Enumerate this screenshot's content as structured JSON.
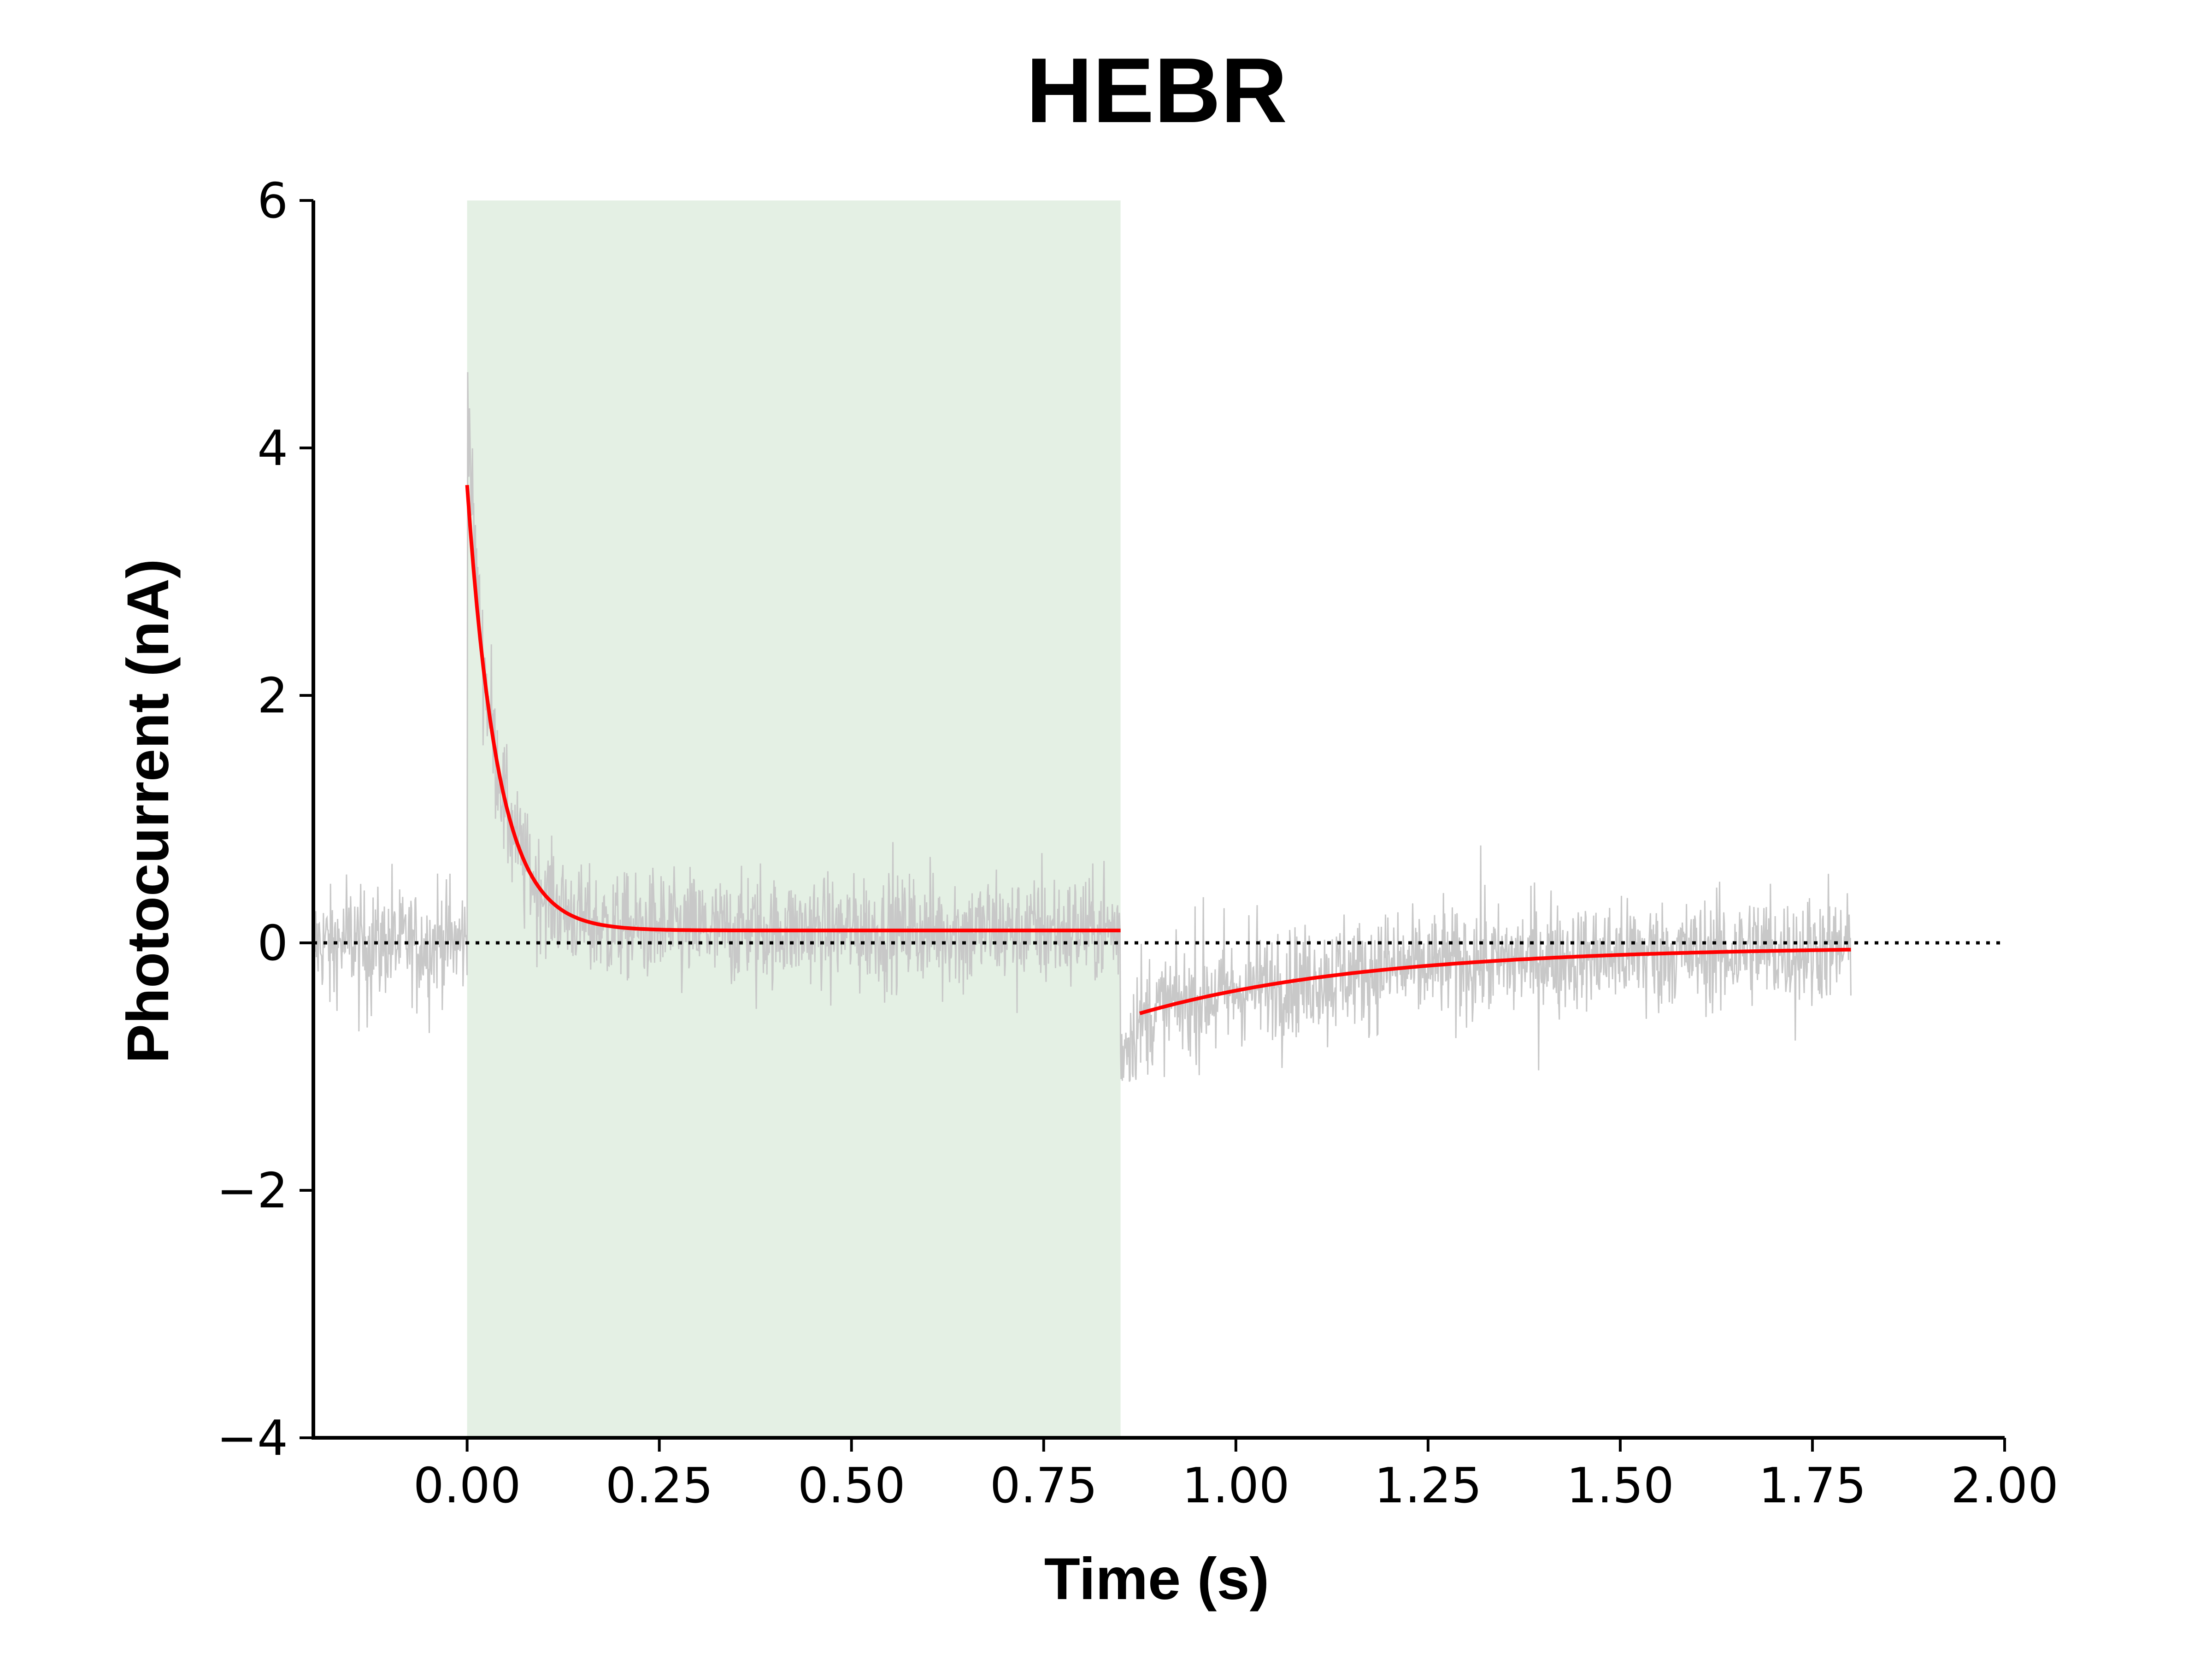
{
  "chart_data": {
    "type": "line",
    "title": "HEBR",
    "xlabel": "Time (s)",
    "ylabel": "Photocurrent (nA)",
    "xlim": [
      -0.2,
      2.0
    ],
    "ylim": [
      -4,
      6
    ],
    "x_ticks": [
      0.0,
      0.25,
      0.5,
      0.75,
      1.0,
      1.25,
      1.5,
      1.75,
      2.0
    ],
    "x_tick_labels": [
      "0.00",
      "0.25",
      "0.50",
      "0.75",
      "1.00",
      "1.25",
      "1.50",
      "1.75",
      "2.00"
    ],
    "y_ticks": [
      -4,
      -2,
      0,
      2,
      4,
      6
    ],
    "y_tick_labels": [
      "−4",
      "−2",
      "0",
      "2",
      "4",
      "6"
    ],
    "grid": false,
    "stimulus_window": {
      "x_start": 0.0,
      "x_end": 0.85,
      "color": "#e4f0e4"
    },
    "zero_line": {
      "y": 0,
      "style": "dotted",
      "color": "#000000"
    },
    "series": [
      {
        "kind": "trace",
        "color": "#c8c8c8",
        "x_range": [
          -0.2,
          1.8
        ],
        "noise_amplitude_nA": 0.3,
        "segments": [
          {
            "x_start": -0.2,
            "x_end": 0.0,
            "baseline": 0.0
          },
          {
            "x_start": 0.0,
            "x_end": 0.85,
            "peak": 4.7,
            "fit_ref": 0
          },
          {
            "x_start": 0.85,
            "x_end": 1.8,
            "start": -0.9,
            "fit_ref": 1
          }
        ]
      },
      {
        "kind": "fit",
        "color": "#ff0000",
        "model": "exponential",
        "x_start": 0.0,
        "x_end": 0.85,
        "y_start": 3.7,
        "y_end": 0.1,
        "tau_s": 0.04
      },
      {
        "kind": "fit",
        "color": "#ff0000",
        "model": "exponential",
        "x_start": 0.875,
        "x_end": 1.8,
        "y_start": -0.57,
        "y_end": -0.03,
        "tau_s": 0.3
      }
    ]
  }
}
